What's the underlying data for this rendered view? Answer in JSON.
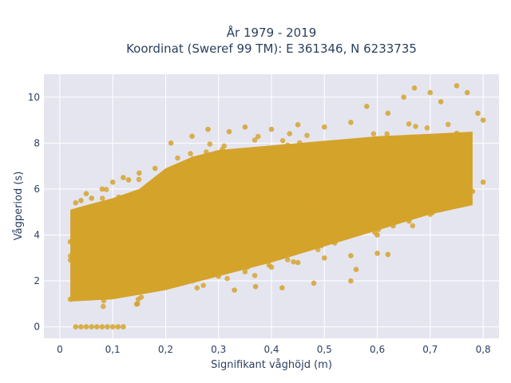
{
  "chart_data": {
    "type": "scatter",
    "title_lines": [
      "År 1979 - 2019",
      "Koordinat (Sweref 99 TM): E 361346, N 6233735"
    ],
    "xlabel": "Signifikant våghöjd (m)",
    "ylabel": "Vågperiod (s)",
    "xlim": [
      -0.03,
      0.83
    ],
    "ylim": [
      -0.5,
      11.0
    ],
    "xticks": [
      0,
      0.1,
      0.2,
      0.3,
      0.4,
      0.5,
      0.6,
      0.7,
      0.8
    ],
    "xtick_labels": [
      "0",
      "0,1",
      "0,2",
      "0,3",
      "0,4",
      "0,5",
      "0,6",
      "0,7",
      "0,8"
    ],
    "yticks": [
      0,
      2,
      4,
      6,
      8,
      10
    ],
    "ytick_labels": [
      "0",
      "2",
      "4",
      "6",
      "8",
      "10"
    ],
    "grid": true,
    "background_color": "#e5e5f0",
    "marker_color": "#d4a32a",
    "series": [
      {
        "values_description": "dense cloud of points; period rises with wave height",
        "points": [
          [
            0.02,
            1.2
          ],
          [
            0.02,
            3.7
          ],
          [
            0.03,
            2.1
          ],
          [
            0.03,
            5.4
          ],
          [
            0.04,
            5.5
          ],
          [
            0.04,
            0.0
          ],
          [
            0.05,
            0.0
          ],
          [
            0.06,
            0.0
          ],
          [
            0.07,
            0.0
          ],
          [
            0.08,
            0.0
          ],
          [
            0.09,
            0.0
          ],
          [
            0.1,
            0.0
          ],
          [
            0.11,
            0.0
          ],
          [
            0.12,
            0.0
          ],
          [
            0.03,
            0.0
          ],
          [
            0.05,
            5.8
          ],
          [
            0.06,
            5.6
          ],
          [
            0.06,
            4.6
          ],
          [
            0.08,
            6.0
          ],
          [
            0.1,
            6.3
          ],
          [
            0.12,
            6.5
          ],
          [
            0.13,
            6.4
          ],
          [
            0.15,
            6.7
          ],
          [
            0.18,
            6.9
          ],
          [
            0.21,
            8.0
          ],
          [
            0.25,
            8.3
          ],
          [
            0.28,
            8.6
          ],
          [
            0.32,
            8.5
          ],
          [
            0.35,
            8.7
          ],
          [
            0.4,
            8.6
          ],
          [
            0.45,
            8.8
          ],
          [
            0.5,
            8.7
          ],
          [
            0.55,
            8.9
          ],
          [
            0.58,
            9.6
          ],
          [
            0.62,
            9.3
          ],
          [
            0.65,
            10.0
          ],
          [
            0.67,
            10.4
          ],
          [
            0.7,
            10.2
          ],
          [
            0.72,
            9.8
          ],
          [
            0.75,
            10.5
          ],
          [
            0.77,
            10.2
          ],
          [
            0.79,
            9.3
          ],
          [
            0.8,
            9.0
          ],
          [
            0.07,
            1.5
          ],
          [
            0.1,
            1.6
          ],
          [
            0.15,
            1.7
          ],
          [
            0.2,
            1.8
          ],
          [
            0.25,
            2.0
          ],
          [
            0.3,
            2.2
          ],
          [
            0.35,
            2.4
          ],
          [
            0.4,
            2.6
          ],
          [
            0.45,
            2.8
          ],
          [
            0.5,
            3.0
          ],
          [
            0.55,
            3.1
          ],
          [
            0.6,
            3.2
          ],
          [
            0.62,
            3.15
          ],
          [
            0.55,
            2.0
          ],
          [
            0.48,
            1.9
          ],
          [
            0.42,
            1.7
          ],
          [
            0.37,
            1.75
          ],
          [
            0.33,
            1.6
          ],
          [
            0.56,
            2.5
          ],
          [
            0.6,
            4.0
          ],
          [
            0.63,
            4.4
          ],
          [
            0.66,
            4.6
          ],
          [
            0.7,
            4.9
          ],
          [
            0.72,
            5.1
          ],
          [
            0.74,
            5.3
          ],
          [
            0.76,
            5.6
          ],
          [
            0.78,
            5.9
          ],
          [
            0.8,
            6.3
          ]
        ]
      }
    ]
  }
}
